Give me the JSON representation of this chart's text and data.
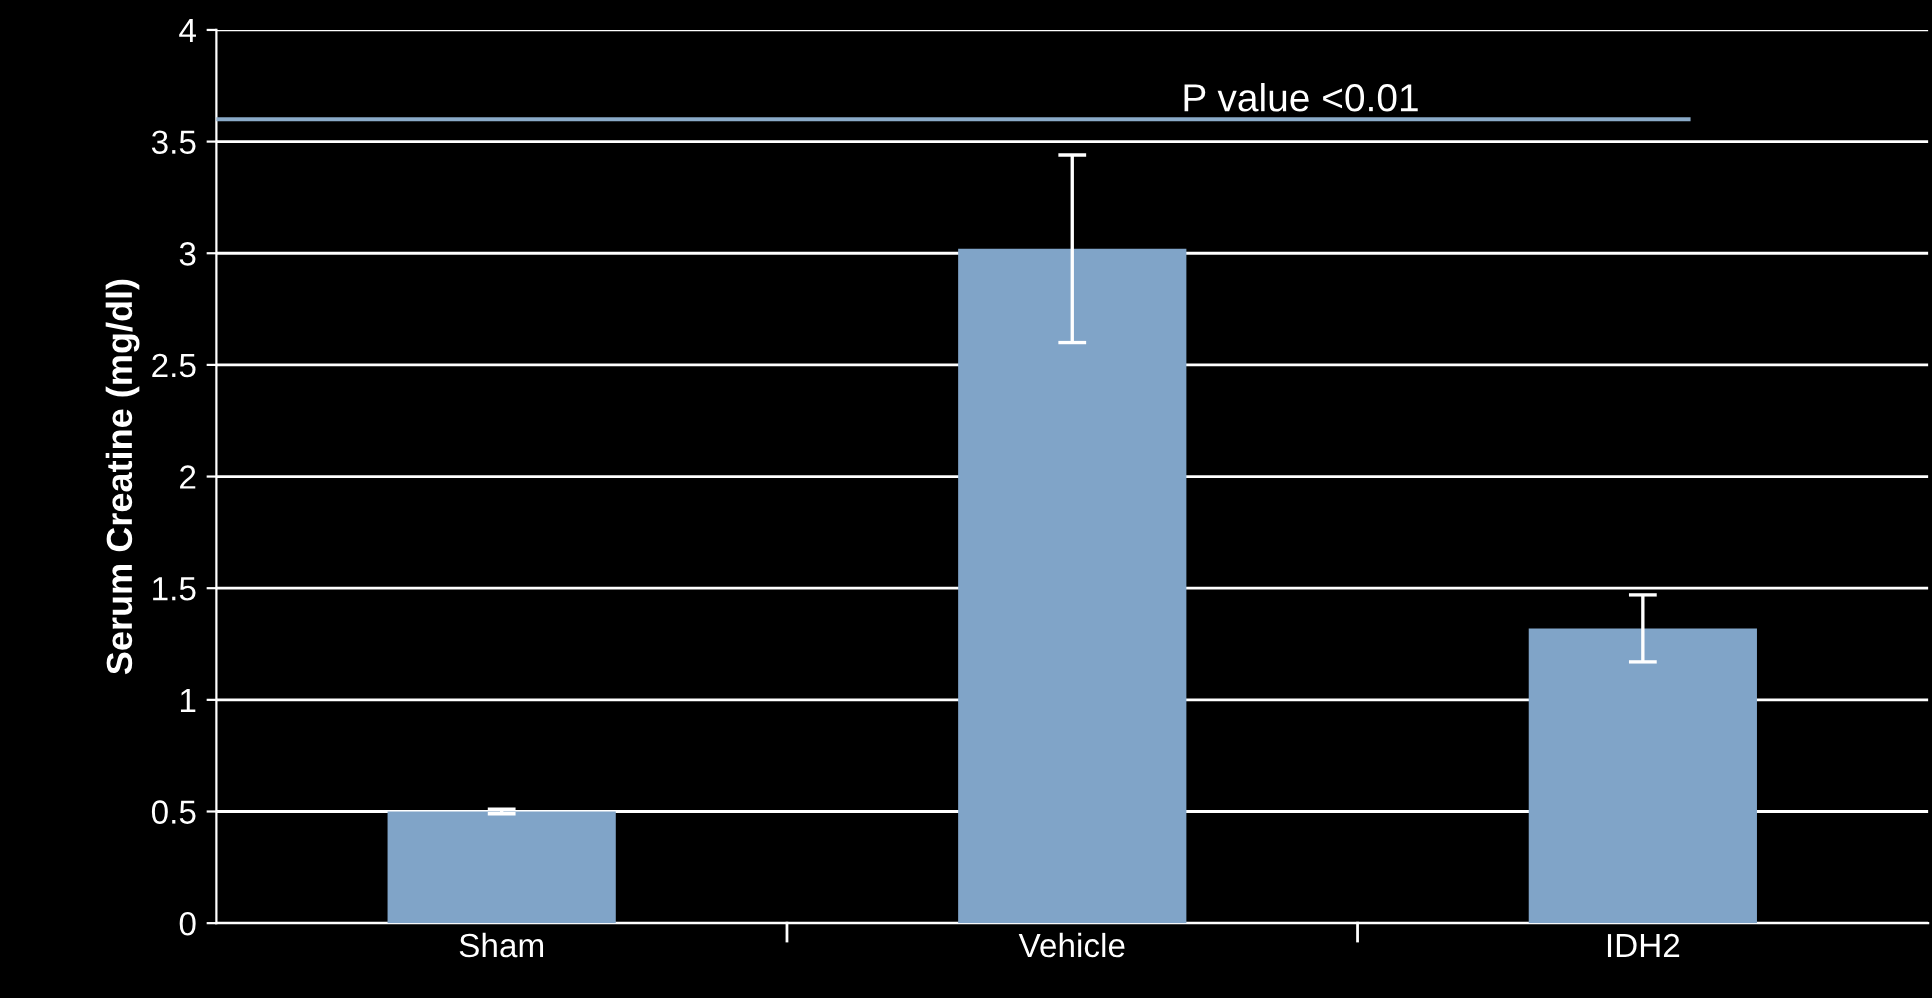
{
  "chart_data": {
    "type": "bar",
    "ylabel": "Serum Creatine (mg/dl)",
    "categories": [
      "Sham",
      "Vehicle",
      "IDH2"
    ],
    "values": [
      0.5,
      3.02,
      1.32
    ],
    "errors": [
      0.01,
      0.42,
      0.15
    ],
    "color": "#80a4c8",
    "ylim": [
      0,
      4
    ],
    "yticks": [
      0,
      0.5,
      1,
      1.5,
      2,
      2.5,
      3,
      3.5,
      4
    ],
    "grid": "y",
    "ref_lines": [
      {
        "axis": "y",
        "value": 3.6,
        "label": "P value <0.01",
        "color": "#8aaac8"
      }
    ]
  }
}
